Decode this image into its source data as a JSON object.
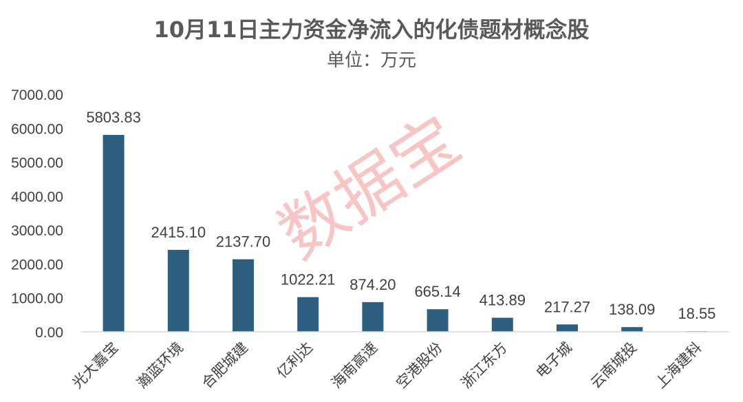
{
  "chart_data": {
    "type": "bar",
    "title": "10月11日主力资金净流入的化债题材概念股",
    "subtitle": "单位：万元",
    "categories": [
      "光大嘉宝",
      "瀚蓝环境",
      "合肥城建",
      "亿利达",
      "海南高速",
      "空港股份",
      "浙江东方",
      "电子城",
      "云南城投",
      "上海建科"
    ],
    "values": [
      5803.83,
      2415.1,
      2137.7,
      1022.21,
      874.2,
      665.14,
      413.89,
      217.27,
      138.09,
      18.55
    ],
    "value_labels": [
      "5803.83",
      "2415.10",
      "2137.70",
      "1022.21",
      "874.20",
      "665.14",
      "413.89",
      "217.27",
      "138.09",
      "18.55"
    ],
    "yticks": [
      "0.00",
      "1000.00",
      "2000.00",
      "3000.00",
      "4000.00",
      "5000.00",
      "6000.00",
      "7000.00"
    ],
    "ylim": [
      0,
      7000
    ],
    "grid": false,
    "legend": "none",
    "bar_color": "#2e5f80",
    "watermark": "数据宝"
  }
}
